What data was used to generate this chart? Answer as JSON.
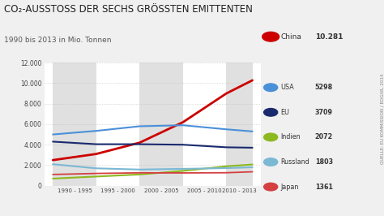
{
  "title_line1": "CO₂-AUSSTOSS DER SECHS GRÖSSTEN EMITTENTEN",
  "subtitle": "1990 bis 2013 in Mio. Tonnen",
  "source": "QUELLE: EU KOMMISSION / EDGAR, 2014",
  "x_values": [
    1990,
    1995,
    2000,
    2005,
    2010,
    2013
  ],
  "x_labels": [
    "1990 - 1995",
    "1995 - 2000",
    "2000 - 2005",
    "2005 - 2010",
    "2010 - 2013"
  ],
  "x_tick_pos": [
    1992.5,
    1997.5,
    2002.5,
    2007.5,
    2011.5
  ],
  "band_ranges": [
    [
      1990,
      1995
    ],
    [
      2000,
      2005
    ],
    [
      2010,
      2013
    ]
  ],
  "series_order": [
    "China",
    "USA",
    "EU",
    "Indien",
    "Russland",
    "Japan"
  ],
  "series": {
    "China": {
      "color": "#cc0000",
      "values": [
        2500,
        3100,
        4200,
        6200,
        9000,
        10281
      ],
      "label": "China",
      "value": "10.281",
      "linewidth": 2.0
    },
    "USA": {
      "color": "#4a90d9",
      "values": [
        5000,
        5350,
        5800,
        5900,
        5500,
        5298
      ],
      "label": "USA",
      "value": "5298",
      "linewidth": 1.5
    },
    "EU": {
      "color": "#1a2a6e",
      "values": [
        4300,
        4050,
        4050,
        4000,
        3750,
        3709
      ],
      "label": "EU",
      "value": "3709",
      "linewidth": 1.5
    },
    "Indien": {
      "color": "#8db820",
      "values": [
        700,
        900,
        1100,
        1450,
        1900,
        2072
      ],
      "label": "Indien",
      "value": "2072",
      "linewidth": 1.5
    },
    "Russland": {
      "color": "#7ab8d4",
      "values": [
        2100,
        1700,
        1580,
        1650,
        1720,
        1803
      ],
      "label": "Russland",
      "value": "1803",
      "linewidth": 1.5
    },
    "Japan": {
      "color": "#d44040",
      "values": [
        1100,
        1200,
        1260,
        1250,
        1270,
        1361
      ],
      "label": "Japan",
      "value": "1361",
      "linewidth": 1.3
    }
  },
  "ylim": [
    0,
    12000
  ],
  "yticks": [
    0,
    2000,
    4000,
    6000,
    8000,
    10000,
    12000
  ],
  "background_color": "#f0f0f0",
  "plot_bg_color": "#ffffff",
  "band_color": "#e0e0e0",
  "grid_color": "#bbbbbb",
  "title_color": "#222222",
  "title_fontsize": 8.5,
  "subtitle_fontsize": 6.5
}
